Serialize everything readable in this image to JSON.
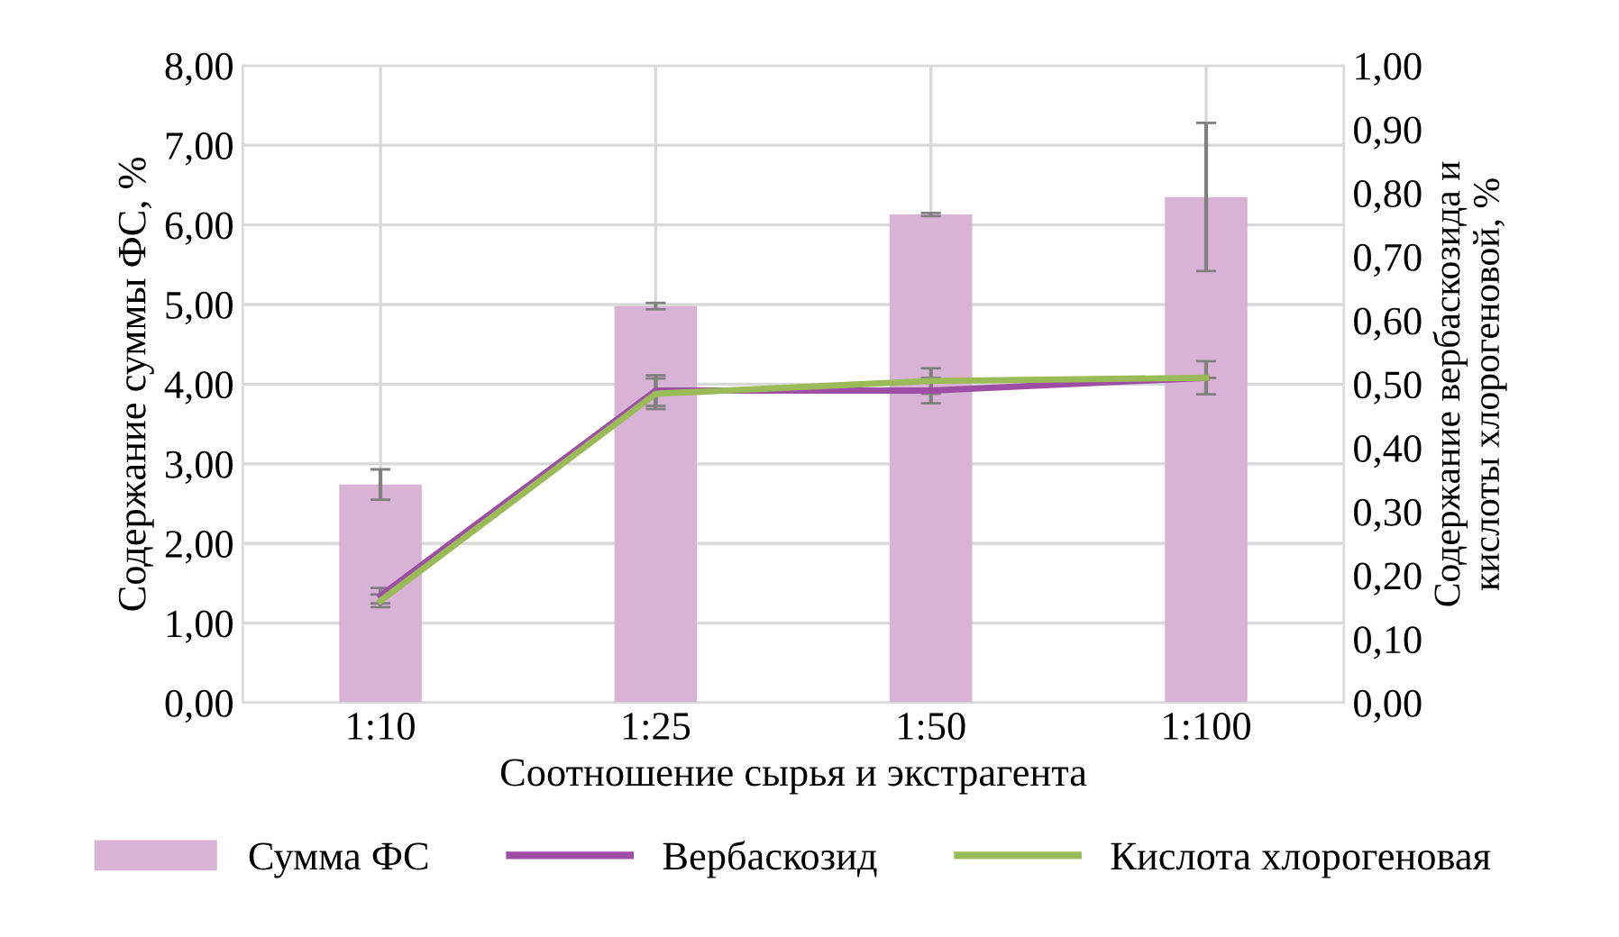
{
  "chart_data": {
    "type": "bar",
    "xlabel": "Соотношение сырья и экстрагента",
    "ylabel": "Содержание суммы ФС, %",
    "y2label": "Содержание вербаскозида и\nкислоты хлорогеновой, %",
    "categories": [
      "1:10",
      "1:25",
      "1:50",
      "1:100"
    ],
    "series": [
      {
        "name": "Сумма ФС",
        "color": "#d9b3d6",
        "values": [
          2.74,
          4.98,
          6.13,
          6.35
        ],
        "errors": [
          0.19,
          0.04,
          0.02,
          0.93
        ]
      },
      {
        "name": "Вербаскозид",
        "type": "line",
        "axis": "y2",
        "color": "#9e4fa5",
        "values": [
          0.168,
          0.49,
          0.49,
          0.51
        ],
        "errors": [
          0.012,
          0.024,
          0.02,
          0.026
        ]
      },
      {
        "name": "Кислота хлорогеновая",
        "type": "line",
        "axis": "y2",
        "color": "#9bbb59",
        "values": [
          0.16,
          0.485,
          0.505,
          0.51
        ],
        "errors": [
          0.01,
          0.024,
          0.02,
          null
        ]
      }
    ],
    "ylim": [
      0,
      8
    ],
    "yticks": [
      {
        "value": 0,
        "label": "0,00"
      },
      {
        "value": 1,
        "label": "1,00"
      },
      {
        "value": 2,
        "label": "2,00"
      },
      {
        "value": 3,
        "label": "3,00"
      },
      {
        "value": 4,
        "label": "4,00"
      },
      {
        "value": 5,
        "label": "5,00"
      },
      {
        "value": 6,
        "label": "6,00"
      },
      {
        "value": 7,
        "label": "7,00"
      },
      {
        "value": 8,
        "label": "8,00"
      }
    ],
    "y2lim": [
      0,
      1
    ],
    "y2ticks": [
      {
        "value": 0,
        "label": "0,00"
      },
      {
        "value": 0.1,
        "label": "0,10"
      },
      {
        "value": 0.2,
        "label": "0,20"
      },
      {
        "value": 0.3,
        "label": "0,30"
      },
      {
        "value": 0.4,
        "label": "0,40"
      },
      {
        "value": 0.5,
        "label": "0,50"
      },
      {
        "value": 0.6,
        "label": "0,60"
      },
      {
        "value": 0.7,
        "label": "0,70"
      },
      {
        "value": 0.8,
        "label": "0,80"
      },
      {
        "value": 0.9,
        "label": "0,90"
      },
      {
        "value": 1,
        "label": "1,00"
      }
    ],
    "grid": true,
    "legend": "bottom",
    "marker": "none",
    "line_style": "solid"
  }
}
